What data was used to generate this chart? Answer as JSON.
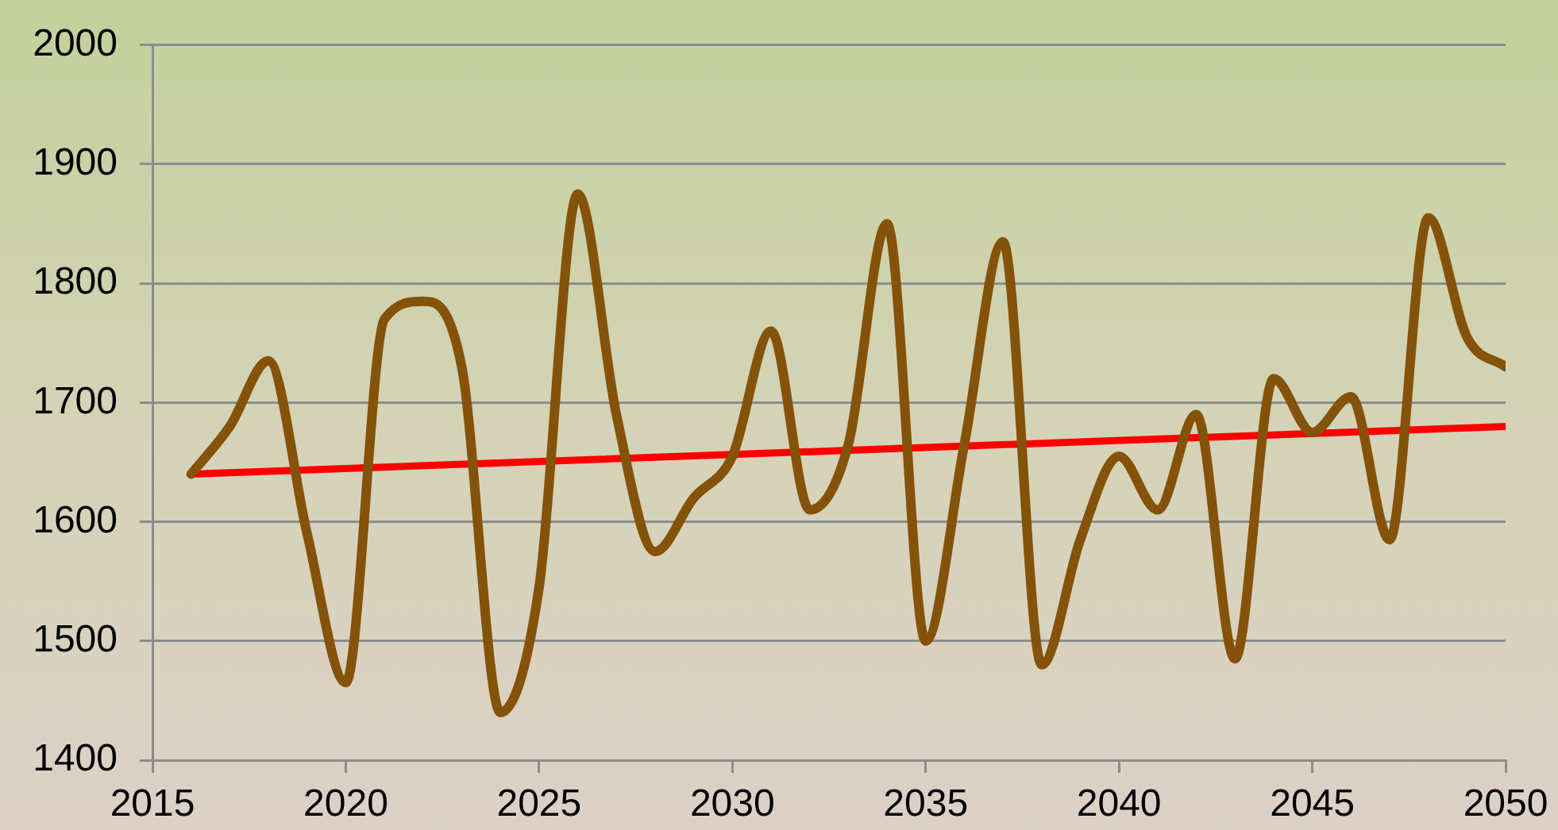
{
  "chart_data": {
    "type": "line",
    "x": [
      2016,
      2017,
      2018,
      2019,
      2020,
      2021,
      2022,
      2023,
      2024,
      2025,
      2026,
      2027,
      2028,
      2029,
      2030,
      2031,
      2032,
      2033,
      2034,
      2035,
      2036,
      2037,
      2038,
      2039,
      2040,
      2041,
      2042,
      2043,
      2044,
      2045,
      2046,
      2047,
      2048,
      2049,
      2050
    ],
    "series": [
      {
        "color": "#845309",
        "values": [
          1640,
          1680,
          1735,
          1590,
          1465,
          1770,
          1785,
          1730,
          1440,
          1545,
          1875,
          1690,
          1575,
          1620,
          1655,
          1760,
          1610,
          1665,
          1850,
          1500,
          1665,
          1835,
          1480,
          1585,
          1655,
          1610,
          1690,
          1485,
          1720,
          1675,
          1705,
          1585,
          1855,
          1755,
          1730
        ]
      },
      {
        "type": "line",
        "x": [
          2016,
          2050
        ],
        "color": "#ff0000",
        "values": [
          1640,
          1680
        ]
      }
    ],
    "xlim": [
      2015,
      2050
    ],
    "xticks": [
      2015,
      2020,
      2025,
      2030,
      2035,
      2040,
      2045,
      2050
    ],
    "ylim": [
      1400,
      2000
    ],
    "yticks": [
      1400,
      1500,
      1600,
      1700,
      1800,
      1900,
      2000
    ],
    "grid": "y"
  }
}
